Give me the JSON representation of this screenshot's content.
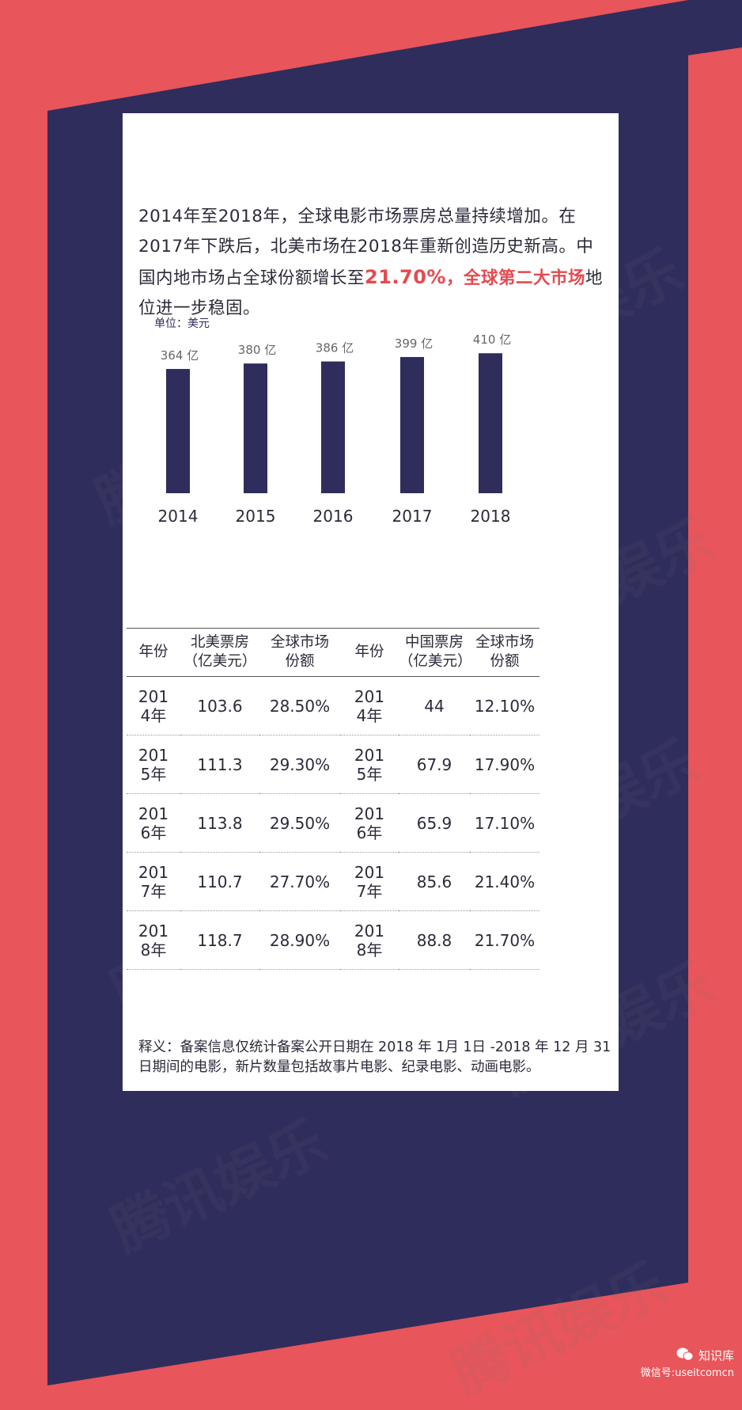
{
  "intro": {
    "part1": "2014年至2018年，全球电影市场票房总量持续增加。在2017年下跌后，北美市场在2018年重新创造历史新高。中国内地市场占全球份额增长至",
    "highlight_pct": "21.70%",
    "comma": "，",
    "highlight_text": "全球第二大市场",
    "part2": "地位进一步稳固。"
  },
  "chart_data": {
    "type": "bar",
    "unit_label": "单位：美元",
    "categories": [
      "2014",
      "2015",
      "2016",
      "2017",
      "2018"
    ],
    "values": [
      364,
      380,
      386,
      399,
      410
    ],
    "value_suffix": " 亿",
    "ylim": [
      300,
      410
    ],
    "grid": false,
    "bar_color": "#2f2d5c"
  },
  "table_left": {
    "headers": [
      "年份",
      "北美票房（亿美元）",
      "全球市场份额"
    ],
    "rows": [
      [
        "2014年",
        "103.6",
        "28.50%"
      ],
      [
        "2015年",
        "111.3",
        "29.30%"
      ],
      [
        "2016年",
        "113.8",
        "29.50%"
      ],
      [
        "2017年",
        "110.7",
        "27.70%"
      ],
      [
        "2018年",
        "118.7",
        "28.90%"
      ]
    ]
  },
  "table_right": {
    "headers": [
      "年份",
      "中国票房（亿美元）",
      "全球市场份额"
    ],
    "rows": [
      [
        "2014年",
        "44",
        "12.10%"
      ],
      [
        "2015年",
        "67.9",
        "17.90%"
      ],
      [
        "2016年",
        "65.9",
        "17.10%"
      ],
      [
        "2017年",
        "85.6",
        "21.40%"
      ],
      [
        "2018年",
        "88.8",
        "21.70%"
      ]
    ]
  },
  "note": "释义：备案信息仅统计备案公开日期在 2018 年 1月 1日 -2018 年 12 月 31 日期间的电影，新片数量包括故事片电影、纪录电影、动画电影。",
  "watermark": "腾讯娱乐",
  "brand": {
    "name": "知识库",
    "account": "微信号:useitcomcn"
  },
  "colors": {
    "background": "#e8555a",
    "navy": "#2f2d5c",
    "accent": "#e54a4f"
  }
}
